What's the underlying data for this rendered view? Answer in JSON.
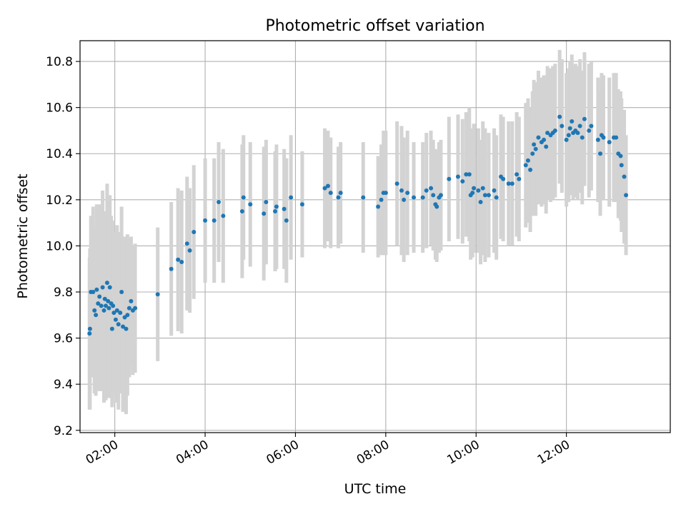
{
  "colors": {
    "point": "#1f77b4",
    "errorbar": "#d3d3d3",
    "grid": "#b0b0b0",
    "axis": "#000000",
    "background": "#ffffff"
  },
  "chart_data": {
    "type": "scatter",
    "title": "Photometric offset variation",
    "xlabel": "UTC time",
    "ylabel": "Photometric offset",
    "grid": true,
    "x_unit": "hours (UTC)",
    "xlim": [
      1.23,
      14.3
    ],
    "ylim": [
      9.19,
      10.89
    ],
    "xticks": [
      {
        "value": 2,
        "label": "02:00"
      },
      {
        "value": 4,
        "label": "04:00"
      },
      {
        "value": 6,
        "label": "06:00"
      },
      {
        "value": 8,
        "label": "08:00"
      },
      {
        "value": 10,
        "label": "10:00"
      },
      {
        "value": 12,
        "label": "12:00"
      }
    ],
    "yticks": [
      {
        "value": 9.2,
        "label": "9.2"
      },
      {
        "value": 9.4,
        "label": "9.4"
      },
      {
        "value": 9.6,
        "label": "9.6"
      },
      {
        "value": 9.8,
        "label": "9.8"
      },
      {
        "value": 10.0,
        "label": "10.0"
      },
      {
        "value": 10.2,
        "label": "10.2"
      },
      {
        "value": 10.4,
        "label": "10.4"
      },
      {
        "value": 10.6,
        "label": "10.6"
      },
      {
        "value": 10.8,
        "label": "10.8"
      }
    ],
    "series": [
      {
        "name": "offset",
        "points": [
          {
            "x": 1.44,
            "y": 9.62,
            "err": 0.33
          },
          {
            "x": 1.45,
            "y": 9.64,
            "err": 0.35
          },
          {
            "x": 1.47,
            "y": 9.8,
            "err": 0.33
          },
          {
            "x": 1.52,
            "y": 9.8,
            "err": 0.37
          },
          {
            "x": 1.55,
            "y": 9.72,
            "err": 0.36
          },
          {
            "x": 1.58,
            "y": 9.7,
            "err": 0.35
          },
          {
            "x": 1.6,
            "y": 9.81,
            "err": 0.37
          },
          {
            "x": 1.63,
            "y": 9.75,
            "err": 0.38
          },
          {
            "x": 1.66,
            "y": 9.78,
            "err": 0.4
          },
          {
            "x": 1.7,
            "y": 9.74,
            "err": 0.37
          },
          {
            "x": 1.73,
            "y": 9.82,
            "err": 0.42
          },
          {
            "x": 1.76,
            "y": 9.72,
            "err": 0.4
          },
          {
            "x": 1.78,
            "y": 9.77,
            "err": 0.38
          },
          {
            "x": 1.8,
            "y": 9.74,
            "err": 0.41
          },
          {
            "x": 1.83,
            "y": 9.84,
            "err": 0.43
          },
          {
            "x": 1.85,
            "y": 9.76,
            "err": 0.4
          },
          {
            "x": 1.87,
            "y": 9.73,
            "err": 0.39
          },
          {
            "x": 1.89,
            "y": 9.82,
            "err": 0.4
          },
          {
            "x": 1.92,
            "y": 9.75,
            "err": 0.38
          },
          {
            "x": 1.94,
            "y": 9.64,
            "err": 0.34
          },
          {
            "x": 1.96,
            "y": 9.74,
            "err": 0.37
          },
          {
            "x": 1.98,
            "y": 9.71,
            "err": 0.35
          },
          {
            "x": 2.02,
            "y": 9.68,
            "err": 0.36
          },
          {
            "x": 2.05,
            "y": 9.72,
            "err": 0.37
          },
          {
            "x": 2.08,
            "y": 9.66,
            "err": 0.37
          },
          {
            "x": 2.12,
            "y": 9.71,
            "err": 0.35
          },
          {
            "x": 2.15,
            "y": 9.8,
            "err": 0.37
          },
          {
            "x": 2.18,
            "y": 9.65,
            "err": 0.37
          },
          {
            "x": 2.22,
            "y": 9.69,
            "err": 0.35
          },
          {
            "x": 2.25,
            "y": 9.64,
            "err": 0.37
          },
          {
            "x": 2.28,
            "y": 9.7,
            "err": 0.35
          },
          {
            "x": 2.32,
            "y": 9.73,
            "err": 0.3
          },
          {
            "x": 2.36,
            "y": 9.76,
            "err": 0.28
          },
          {
            "x": 2.4,
            "y": 9.72,
            "err": 0.28
          },
          {
            "x": 2.45,
            "y": 9.73,
            "err": 0.28
          },
          {
            "x": 2.95,
            "y": 9.79,
            "err": 0.29
          },
          {
            "x": 3.25,
            "y": 9.9,
            "err": 0.29
          },
          {
            "x": 3.4,
            "y": 9.94,
            "err": 0.31
          },
          {
            "x": 3.48,
            "y": 9.93,
            "err": 0.31
          },
          {
            "x": 3.6,
            "y": 10.01,
            "err": 0.29
          },
          {
            "x": 3.66,
            "y": 9.98,
            "err": 0.27
          },
          {
            "x": 3.75,
            "y": 10.06,
            "err": 0.29
          },
          {
            "x": 4.0,
            "y": 10.11,
            "err": 0.27
          },
          {
            "x": 4.2,
            "y": 10.11,
            "err": 0.27
          },
          {
            "x": 4.3,
            "y": 10.19,
            "err": 0.26
          },
          {
            "x": 4.4,
            "y": 10.13,
            "err": 0.29
          },
          {
            "x": 4.82,
            "y": 10.15,
            "err": 0.29
          },
          {
            "x": 4.85,
            "y": 10.21,
            "err": 0.27
          },
          {
            "x": 5.0,
            "y": 10.18,
            "err": 0.27
          },
          {
            "x": 5.3,
            "y": 10.14,
            "err": 0.29
          },
          {
            "x": 5.35,
            "y": 10.19,
            "err": 0.27
          },
          {
            "x": 5.55,
            "y": 10.15,
            "err": 0.26
          },
          {
            "x": 5.58,
            "y": 10.17,
            "err": 0.27
          },
          {
            "x": 5.75,
            "y": 10.16,
            "err": 0.26
          },
          {
            "x": 5.8,
            "y": 10.11,
            "err": 0.27
          },
          {
            "x": 5.9,
            "y": 10.21,
            "err": 0.27
          },
          {
            "x": 6.15,
            "y": 10.18,
            "err": 0.23
          },
          {
            "x": 6.65,
            "y": 10.25,
            "err": 0.26
          },
          {
            "x": 6.72,
            "y": 10.26,
            "err": 0.24
          },
          {
            "x": 6.78,
            "y": 10.23,
            "err": 0.24
          },
          {
            "x": 6.95,
            "y": 10.21,
            "err": 0.22
          },
          {
            "x": 7.0,
            "y": 10.23,
            "err": 0.22
          },
          {
            "x": 7.5,
            "y": 10.21,
            "err": 0.24
          },
          {
            "x": 7.83,
            "y": 10.17,
            "err": 0.22
          },
          {
            "x": 7.9,
            "y": 10.2,
            "err": 0.24
          },
          {
            "x": 7.95,
            "y": 10.23,
            "err": 0.27
          },
          {
            "x": 8.0,
            "y": 10.23,
            "err": 0.27
          },
          {
            "x": 8.25,
            "y": 10.27,
            "err": 0.27
          },
          {
            "x": 8.35,
            "y": 10.24,
            "err": 0.28
          },
          {
            "x": 8.4,
            "y": 10.2,
            "err": 0.27
          },
          {
            "x": 8.48,
            "y": 10.23,
            "err": 0.27
          },
          {
            "x": 8.62,
            "y": 10.21,
            "err": 0.24
          },
          {
            "x": 8.82,
            "y": 10.21,
            "err": 0.24
          },
          {
            "x": 8.9,
            "y": 10.24,
            "err": 0.25
          },
          {
            "x": 9.0,
            "y": 10.25,
            "err": 0.25
          },
          {
            "x": 9.05,
            "y": 10.22,
            "err": 0.24
          },
          {
            "x": 9.1,
            "y": 10.18,
            "err": 0.24
          },
          {
            "x": 9.13,
            "y": 10.17,
            "err": 0.24
          },
          {
            "x": 9.18,
            "y": 10.21,
            "err": 0.24
          },
          {
            "x": 9.22,
            "y": 10.22,
            "err": 0.24
          },
          {
            "x": 9.4,
            "y": 10.29,
            "err": 0.27
          },
          {
            "x": 9.6,
            "y": 10.3,
            "err": 0.27
          },
          {
            "x": 9.7,
            "y": 10.28,
            "err": 0.27
          },
          {
            "x": 9.78,
            "y": 10.31,
            "err": 0.27
          },
          {
            "x": 9.85,
            "y": 10.31,
            "err": 0.29
          },
          {
            "x": 9.88,
            "y": 10.22,
            "err": 0.28
          },
          {
            "x": 9.92,
            "y": 10.23,
            "err": 0.28
          },
          {
            "x": 9.95,
            "y": 10.25,
            "err": 0.28
          },
          {
            "x": 10.05,
            "y": 10.24,
            "err": 0.27
          },
          {
            "x": 10.1,
            "y": 10.19,
            "err": 0.27
          },
          {
            "x": 10.15,
            "y": 10.25,
            "err": 0.29
          },
          {
            "x": 10.2,
            "y": 10.22,
            "err": 0.29
          },
          {
            "x": 10.28,
            "y": 10.22,
            "err": 0.27
          },
          {
            "x": 10.4,
            "y": 10.24,
            "err": 0.27
          },
          {
            "x": 10.45,
            "y": 10.21,
            "err": 0.27
          },
          {
            "x": 10.55,
            "y": 10.3,
            "err": 0.27
          },
          {
            "x": 10.6,
            "y": 10.29,
            "err": 0.27
          },
          {
            "x": 10.72,
            "y": 10.27,
            "err": 0.27
          },
          {
            "x": 10.8,
            "y": 10.27,
            "err": 0.27
          },
          {
            "x": 10.9,
            "y": 10.31,
            "err": 0.27
          },
          {
            "x": 10.95,
            "y": 10.29,
            "err": 0.27
          },
          {
            "x": 11.1,
            "y": 10.35,
            "err": 0.27
          },
          {
            "x": 11.15,
            "y": 10.37,
            "err": 0.27
          },
          {
            "x": 11.2,
            "y": 10.33,
            "err": 0.27
          },
          {
            "x": 11.25,
            "y": 10.4,
            "err": 0.27
          },
          {
            "x": 11.28,
            "y": 10.44,
            "err": 0.28
          },
          {
            "x": 11.32,
            "y": 10.42,
            "err": 0.29
          },
          {
            "x": 11.38,
            "y": 10.47,
            "err": 0.29
          },
          {
            "x": 11.45,
            "y": 10.45,
            "err": 0.28
          },
          {
            "x": 11.5,
            "y": 10.46,
            "err": 0.28
          },
          {
            "x": 11.55,
            "y": 10.43,
            "err": 0.29
          },
          {
            "x": 11.58,
            "y": 10.49,
            "err": 0.29
          },
          {
            "x": 11.65,
            "y": 10.48,
            "err": 0.29
          },
          {
            "x": 11.7,
            "y": 10.49,
            "err": 0.29
          },
          {
            "x": 11.75,
            "y": 10.5,
            "err": 0.29
          },
          {
            "x": 11.85,
            "y": 10.56,
            "err": 0.29
          },
          {
            "x": 11.9,
            "y": 10.52,
            "err": 0.29
          },
          {
            "x": 12.0,
            "y": 10.46,
            "err": 0.29
          },
          {
            "x": 12.05,
            "y": 10.48,
            "err": 0.29
          },
          {
            "x": 12.08,
            "y": 10.51,
            "err": 0.29
          },
          {
            "x": 12.12,
            "y": 10.54,
            "err": 0.29
          },
          {
            "x": 12.15,
            "y": 10.49,
            "err": 0.29
          },
          {
            "x": 12.2,
            "y": 10.5,
            "err": 0.29
          },
          {
            "x": 12.25,
            "y": 10.49,
            "err": 0.29
          },
          {
            "x": 12.3,
            "y": 10.52,
            "err": 0.29
          },
          {
            "x": 12.35,
            "y": 10.47,
            "err": 0.29
          },
          {
            "x": 12.4,
            "y": 10.55,
            "err": 0.29
          },
          {
            "x": 12.5,
            "y": 10.5,
            "err": 0.29
          },
          {
            "x": 12.55,
            "y": 10.52,
            "err": 0.28
          },
          {
            "x": 12.7,
            "y": 10.46,
            "err": 0.27
          },
          {
            "x": 12.75,
            "y": 10.4,
            "err": 0.27
          },
          {
            "x": 12.78,
            "y": 10.48,
            "err": 0.27
          },
          {
            "x": 12.82,
            "y": 10.47,
            "err": 0.27
          },
          {
            "x": 12.95,
            "y": 10.45,
            "err": 0.28
          },
          {
            "x": 13.05,
            "y": 10.47,
            "err": 0.28
          },
          {
            "x": 13.1,
            "y": 10.47,
            "err": 0.28
          },
          {
            "x": 13.15,
            "y": 10.4,
            "err": 0.28
          },
          {
            "x": 13.2,
            "y": 10.39,
            "err": 0.28
          },
          {
            "x": 13.22,
            "y": 10.35,
            "err": 0.29
          },
          {
            "x": 13.28,
            "y": 10.3,
            "err": 0.29
          },
          {
            "x": 13.32,
            "y": 10.22,
            "err": 0.26
          }
        ]
      }
    ]
  }
}
